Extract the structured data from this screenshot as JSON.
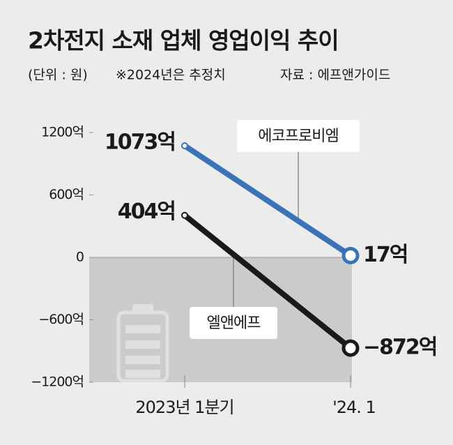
{
  "chart_data": {
    "type": "line",
    "title": "2차전지 소재 업체 영업이익 추이",
    "unit": "(단위 : 원)",
    "note": "※2024년은 추정치",
    "source": "자료 : 에프앤가이드",
    "categories": [
      "2023년 1분기",
      "'24. 1"
    ],
    "series": [
      {
        "name": "에코프로비엠",
        "color": "#3a73b7",
        "values": [
          1073,
          17
        ],
        "value_labels": [
          "1073억",
          "17억"
        ]
      },
      {
        "name": "엘앤에프",
        "color": "#1a1a1a",
        "values": [
          404,
          -872
        ],
        "value_labels": [
          "404억",
          "−872억"
        ]
      }
    ],
    "ylim": [
      -1200,
      1200
    ],
    "yticks": [
      {
        "value": 1200,
        "label": "1200억"
      },
      {
        "value": 600,
        "label": "600억"
      },
      0,
      {
        "value": -600,
        "label": "−600억"
      },
      {
        "value": -1200,
        "label": "−1200억"
      }
    ]
  }
}
